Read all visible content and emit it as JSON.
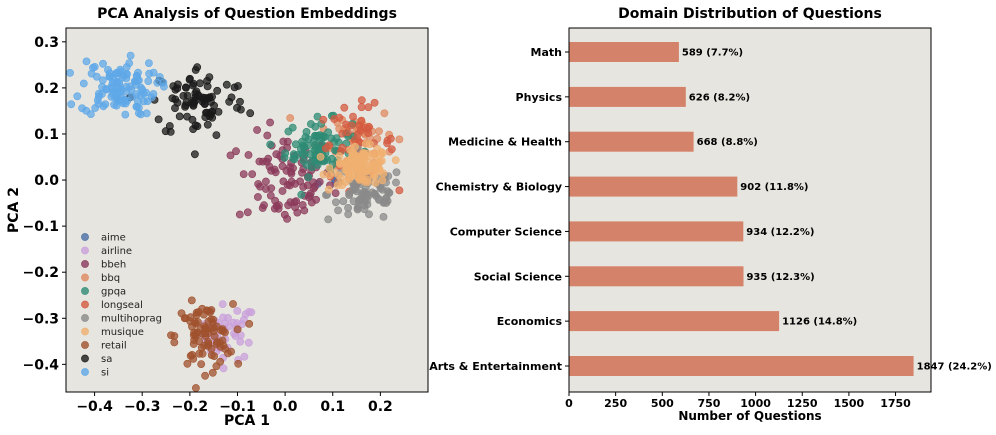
{
  "chart_data": [
    {
      "type": "scatter",
      "title": "PCA Analysis of Question Embeddings",
      "xlabel": "PCA 1",
      "ylabel": "PCA 2",
      "xlim": [
        -0.46,
        0.3
      ],
      "ylim": [
        -0.46,
        0.33
      ],
      "xticks": [
        -0.4,
        -0.3,
        -0.2,
        -0.1,
        0.0,
        0.1,
        0.2
      ],
      "xtick_labels": [
        "−0.4",
        "−0.3",
        "−0.2",
        "−0.1",
        "0.0",
        "0.1",
        "0.2"
      ],
      "yticks": [
        -0.4,
        -0.3,
        -0.2,
        -0.1,
        0.0,
        0.1,
        0.2,
        0.3
      ],
      "ytick_labels": [
        "−0.4",
        "−0.3",
        "−0.2",
        "−0.1",
        "0.0",
        "0.1",
        "0.2",
        "0.3"
      ],
      "legend_position": "lower-left",
      "series": [
        {
          "name": "aime",
          "color": "#4a6fa5",
          "center": [
            0.1,
            0.0
          ],
          "spread": [
            0.015,
            0.015
          ],
          "count": 6
        },
        {
          "name": "airline",
          "color": "#c9a0dc",
          "center": [
            -0.12,
            -0.33
          ],
          "spread": [
            0.03,
            0.03
          ],
          "count": 45
        },
        {
          "name": "bbeh",
          "color": "#8b3a5a",
          "center": [
            0.0,
            0.0
          ],
          "spread": [
            0.05,
            0.05
          ],
          "count": 95
        },
        {
          "name": "bbq",
          "color": "#e08a60",
          "center": [
            0.15,
            0.1
          ],
          "spread": [
            0.04,
            0.03
          ],
          "count": 45
        },
        {
          "name": "gpqa",
          "color": "#2e8b74",
          "center": [
            0.07,
            0.07
          ],
          "spread": [
            0.035,
            0.03
          ],
          "count": 85
        },
        {
          "name": "longseal",
          "color": "#d45a40",
          "center": [
            0.15,
            0.08
          ],
          "spread": [
            0.04,
            0.04
          ],
          "count": 50
        },
        {
          "name": "multihoprag",
          "color": "#8a8a8a",
          "center": [
            0.17,
            -0.03
          ],
          "spread": [
            0.04,
            0.03
          ],
          "count": 80
        },
        {
          "name": "musique",
          "color": "#f0b070",
          "center": [
            0.16,
            0.03
          ],
          "spread": [
            0.03,
            0.02
          ],
          "count": 110
        },
        {
          "name": "retail",
          "color": "#a0522d",
          "center": [
            -0.17,
            -0.34
          ],
          "spread": [
            0.03,
            0.035
          ],
          "count": 85
        },
        {
          "name": "sa",
          "color": "#1a1a1a",
          "center": [
            -0.18,
            0.17
          ],
          "spread": [
            0.05,
            0.04
          ],
          "count": 85
        },
        {
          "name": "si",
          "color": "#5fa8e8",
          "center": [
            -0.35,
            0.2
          ],
          "spread": [
            0.04,
            0.03
          ],
          "count": 110
        }
      ]
    },
    {
      "type": "bar",
      "orientation": "horizontal",
      "title": "Domain Distribution of Questions",
      "xlabel": "Number of Questions",
      "ylabel": "",
      "xlim": [
        0,
        1940
      ],
      "xticks": [
        0,
        250,
        500,
        750,
        1000,
        1250,
        1500,
        1750
      ],
      "bar_color": "#d4826a",
      "categories": [
        "Math",
        "Physics",
        "Medicine & Health",
        "Chemistry & Biology",
        "Computer Science",
        "Social Science",
        "Economics",
        "Arts & Entertainment"
      ],
      "values": [
        589,
        626,
        668,
        902,
        934,
        935,
        1126,
        1847
      ],
      "labels": [
        "589 (7.7%)",
        "626 (8.2%)",
        "668 (8.8%)",
        "902 (11.8%)",
        "934 (12.2%)",
        "935 (12.3%)",
        "1126 (14.8%)",
        "1847 (24.2%)"
      ]
    }
  ],
  "colors": {
    "plot_background": "#e6e5df",
    "axis": "#000000"
  }
}
